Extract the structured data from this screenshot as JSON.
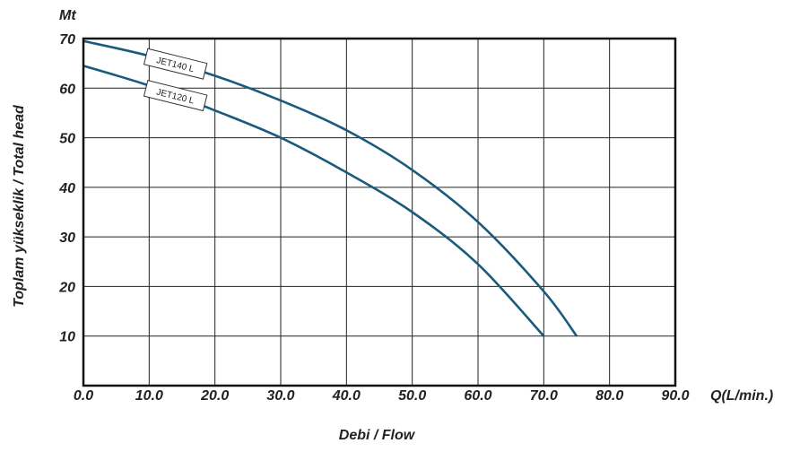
{
  "chart_data": {
    "type": "line",
    "title": "",
    "xlabel": "Debi / Flow",
    "xunit_label": "Q(L/min.)",
    "ylabel": "Toplam yükseklik / Total head",
    "yunit_label": "Mt",
    "xlim": [
      0,
      90
    ],
    "ylim": [
      0,
      70
    ],
    "xticks": [
      "0.0",
      "10.0",
      "20.0",
      "30.0",
      "40.0",
      "50.0",
      "60.0",
      "70.0",
      "80.0",
      "90.0"
    ],
    "yticks": [
      "10",
      "20",
      "30",
      "40",
      "50",
      "60",
      "70"
    ],
    "grid": true,
    "series": [
      {
        "name": "JET140 L",
        "color": "#1a5a7d",
        "x": [
          0,
          10,
          20,
          30,
          40,
          50,
          60,
          70,
          75
        ],
        "y": [
          69.5,
          66.5,
          62.5,
          57.5,
          51.5,
          43.5,
          33.0,
          19.0,
          10.0
        ]
      },
      {
        "name": "JET120 L",
        "color": "#1a5a7d",
        "x": [
          0,
          10,
          20,
          30,
          40,
          50,
          60,
          70
        ],
        "y": [
          64.5,
          60.5,
          55.5,
          50.0,
          43.0,
          35.0,
          24.5,
          10.0
        ]
      }
    ]
  }
}
